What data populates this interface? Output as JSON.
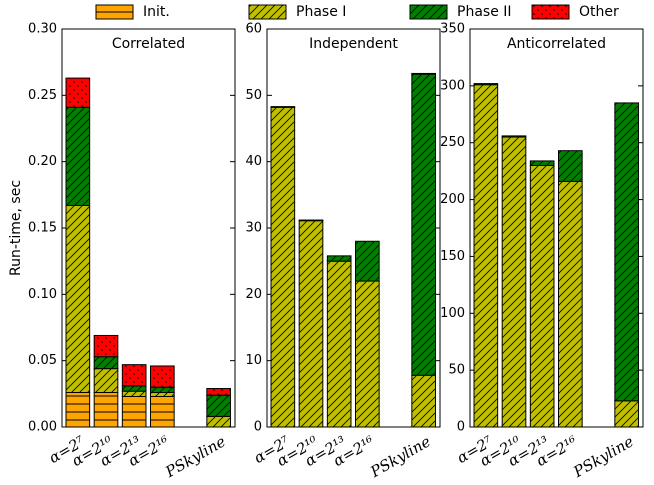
{
  "legend": [
    {
      "name": "Init.",
      "color": "#ffa500"
    },
    {
      "name": "Phase I",
      "color": "#bfbf00"
    },
    {
      "name": "Phase II",
      "color": "#007f00"
    },
    {
      "name": "Other",
      "color": "#ff0000"
    }
  ],
  "ylabel": "Run-time, sec",
  "chart_data": [
    {
      "type": "bar",
      "title": "Correlated",
      "categories": [
        "α=2⁷",
        "α=2¹⁰",
        "α=2¹³",
        "α=2¹⁶",
        null,
        "PSkyline"
      ],
      "series": [
        {
          "values": [
            0.026,
            0.026,
            0.023,
            0.023,
            null,
            0
          ]
        },
        {
          "values": [
            0.141,
            0.018,
            0.004,
            0.003,
            null,
            0.008
          ]
        },
        {
          "values": [
            0.074,
            0.009,
            0.004,
            0.004,
            null,
            0.016
          ]
        },
        {
          "values": [
            0.022,
            0.016,
            0.016,
            0.016,
            null,
            0.005
          ]
        }
      ],
      "ylim": [
        0,
        0.3
      ],
      "yticks": [
        {
          "value": 0,
          "label": "0.00"
        },
        {
          "value": 0.05,
          "label": "0.05"
        },
        {
          "value": 0.1,
          "label": "0.10"
        },
        {
          "value": 0.15,
          "label": "0.15"
        },
        {
          "value": 0.2,
          "label": "0.20"
        },
        {
          "value": 0.25,
          "label": "0.25"
        },
        {
          "value": 0.3,
          "label": "0.30"
        }
      ]
    },
    {
      "type": "bar",
      "title": "Independent",
      "categories": [
        "α=2⁷",
        "α=2¹⁰",
        "α=2¹³",
        "α=2¹⁶",
        null,
        "PSkyline"
      ],
      "series": [
        {
          "values": [
            0,
            0,
            0,
            0,
            null,
            0
          ]
        },
        {
          "values": [
            48.2,
            31.1,
            25,
            22,
            null,
            7.8
          ]
        },
        {
          "values": [
            0.1,
            0.1,
            0.8,
            6,
            null,
            45.4
          ]
        },
        {
          "values": [
            0,
            0,
            0,
            0,
            null,
            0.1
          ]
        }
      ],
      "ylim": [
        0,
        60
      ],
      "yticks": [
        0,
        10,
        20,
        30,
        40,
        50,
        60
      ]
    },
    {
      "type": "bar",
      "title": "Anticorrelated",
      "categories": [
        "α=2⁷",
        "α=2¹⁰",
        "α=2¹³",
        "α=2¹⁶",
        null,
        "PSkyline"
      ],
      "series": [
        {
          "values": [
            0,
            0,
            0,
            0,
            null,
            0
          ]
        },
        {
          "values": [
            301,
            255,
            230,
            216,
            null,
            23
          ]
        },
        {
          "values": [
            1,
            1,
            4,
            27,
            null,
            262
          ]
        },
        {
          "values": [
            0,
            0,
            0,
            0,
            null,
            0
          ]
        }
      ],
      "ylim": [
        0,
        350
      ],
      "yticks": [
        0,
        50,
        100,
        150,
        200,
        250,
        300,
        350
      ]
    }
  ]
}
